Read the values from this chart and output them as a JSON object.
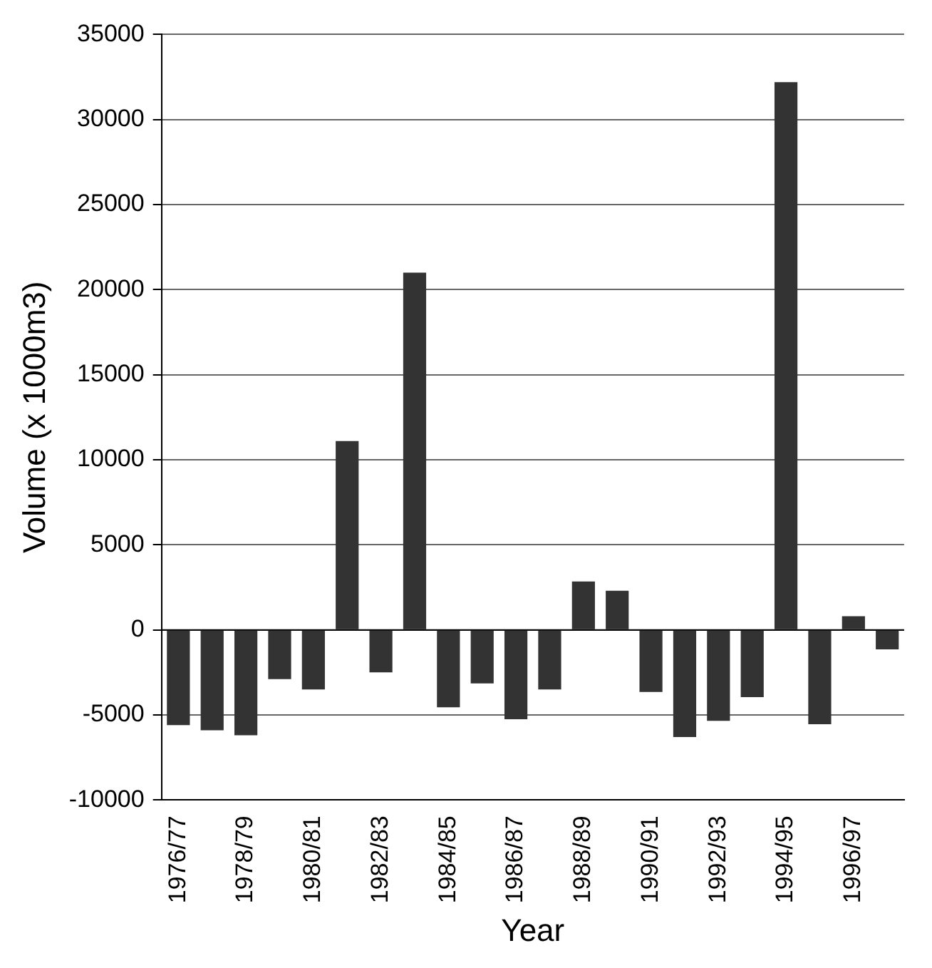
{
  "chart_data": {
    "type": "bar",
    "xlabel": "Year",
    "ylabel": "Volume (x 1000m3)",
    "categories": [
      "1976/77",
      null,
      "1978/79",
      null,
      "1980/81",
      null,
      "1982/83",
      null,
      "1984/85",
      null,
      "1986/87",
      null,
      "1988/89",
      null,
      "1990/91",
      null,
      "1992/93",
      null,
      "1994/95",
      null,
      "1996/97",
      null
    ],
    "values": [
      -5600,
      -5900,
      -6200,
      -2900,
      -3500,
      11100,
      -2500,
      21000,
      -4550,
      -3150,
      -5250,
      -3500,
      2850,
      2300,
      -3650,
      -6300,
      -5350,
      -3950,
      32200,
      -5550,
      800,
      -1150
    ],
    "color": "#333333",
    "ylim": [
      -10000,
      35000
    ],
    "yticks": [
      -10000,
      -5000,
      0,
      5000,
      10000,
      15000,
      20000,
      25000,
      30000,
      35000
    ],
    "grid": "y"
  }
}
